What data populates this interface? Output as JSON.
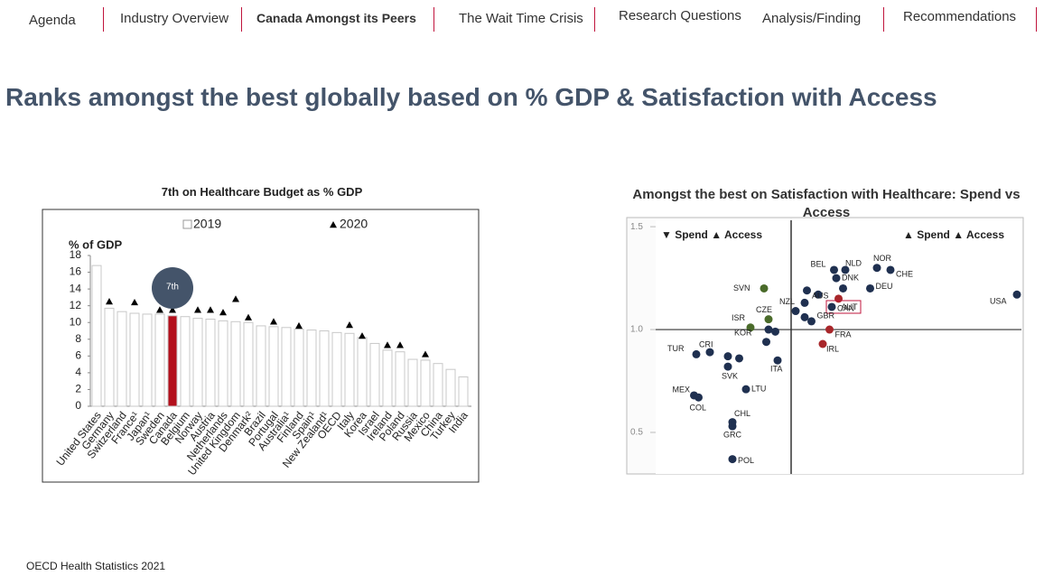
{
  "nav": [
    "Agenda",
    "Industry Overview",
    "Canada Amongst its Peers",
    "The Wait Time Crisis",
    "Research Questions",
    "Analysis/Finding",
    "Recommendations"
  ],
  "title": "Ranks amongst the best globally based on % GDP & Satisfaction with Access",
  "source": "OECD Health Statistics 2021",
  "chart_data": [
    {
      "type": "bar",
      "title": "7th on Healthcare Budget as % GDP",
      "y_label": "% of GDP",
      "annotation": "7th",
      "categories": [
        "United States",
        "Germany",
        "Switzerland",
        "France¹",
        "Japan¹",
        "Sweden",
        "Canada",
        "Belgium",
        "Norway",
        "Austria",
        "Netherlands",
        "United Kingdom",
        "Denmark²",
        "Brazil",
        "Portugal",
        "Australia¹",
        "Finland",
        "Spain¹",
        "New Zealand¹",
        "OECD",
        "Italy",
        "Korea",
        "Israel",
        "Ireland",
        "Poland",
        "Russia",
        "Mexico",
        "China",
        "Turkey",
        "India"
      ],
      "series": [
        {
          "name": "2019",
          "color": "#ffffff",
          "colors": [
            "#ffffff",
            "#ffffff",
            "#ffffff",
            "#ffffff",
            "#ffffff",
            "#ffffff",
            "#b3101c",
            "#ffffff",
            "#ffffff",
            "#ffffff",
            "#ffffff",
            "#ffffff",
            "#ffffff",
            "#ffffff",
            "#ffffff",
            "#ffffff",
            "#ffffff",
            "#ffffff",
            "#ffffff",
            "#ffffff",
            "#ffffff",
            "#ffffff",
            "#ffffff",
            "#ffffff",
            "#ffffff",
            "#ffffff",
            "#ffffff",
            "#ffffff",
            "#ffffff",
            "#ffffff"
          ],
          "values": [
            16.8,
            11.7,
            11.3,
            11.1,
            11.0,
            11.0,
            10.8,
            10.7,
            10.5,
            10.4,
            10.2,
            10.1,
            10.0,
            9.6,
            9.5,
            9.4,
            9.2,
            9.1,
            9.0,
            8.8,
            8.7,
            8.2,
            7.5,
            6.7,
            6.5,
            5.6,
            5.5,
            5.1,
            4.4,
            3.5
          ]
        },
        {
          "name": "2020",
          "color": "#000000",
          "marker": "triangle",
          "values": [
            null,
            12.5,
            null,
            12.4,
            null,
            11.5,
            11.5,
            null,
            11.5,
            11.5,
            11.2,
            12.8,
            10.6,
            null,
            10.1,
            null,
            9.6,
            null,
            null,
            null,
            9.7,
            8.4,
            null,
            7.3,
            7.3,
            null,
            6.2,
            null,
            null,
            null
          ]
        }
      ],
      "ylim": [
        0,
        18
      ],
      "yticks": [
        0,
        2,
        4,
        6,
        8,
        10,
        12,
        14,
        16,
        18
      ]
    },
    {
      "type": "scatter",
      "title": "Amongst the best on Satisfaction with Healthcare: Spend vs Access",
      "quadrant_labels": [
        "▼ Spend ▲ Access",
        "▲ Spend ▲ Access"
      ],
      "labels": [
        "USA",
        "NOR",
        "CHE",
        "NLD",
        "BEL",
        "DNK",
        "DEU",
        "AUS",
        "AUT",
        "CAN",
        "NZL",
        "GBR",
        "FRA",
        "IRL",
        "SVN",
        "CZE",
        "ISR",
        "KOR",
        "ITA",
        "TUR",
        "CRI",
        "SVK",
        "LTU",
        "MEX",
        "COL",
        "CHL",
        "GRC",
        "POL",
        null,
        null,
        null,
        null,
        null,
        null,
        null,
        null
      ],
      "x": [
        2.0,
        1.38,
        1.44,
        1.24,
        1.19,
        1.2,
        1.35,
        1.12,
        1.21,
        1.18,
        1.02,
        1.09,
        1.17,
        1.14,
        0.88,
        0.9,
        0.82,
        0.9,
        0.94,
        0.58,
        0.64,
        0.72,
        0.8,
        0.57,
        0.59,
        0.74,
        0.74,
        0.74,
        1.07,
        1.06,
        0.89,
        1.06,
        1.23,
        0.72,
        0.77,
        0.93
      ],
      "y": [
        1.17,
        1.3,
        1.29,
        1.29,
        1.29,
        1.25,
        1.2,
        1.17,
        1.15,
        1.11,
        1.09,
        1.04,
        1.0,
        0.93,
        1.2,
        1.05,
        1.01,
        1.0,
        0.85,
        0.88,
        0.89,
        0.82,
        0.71,
        0.68,
        0.67,
        0.55,
        0.53,
        0.37,
        1.19,
        1.13,
        0.94,
        1.06,
        1.2,
        0.87,
        0.86,
        0.99
      ],
      "colors": [
        "#1f3050",
        "#1f3050",
        "#1f3050",
        "#1f3050",
        "#1f3050",
        "#1f3050",
        "#1f3050",
        "#1f3050",
        "#a8262a",
        "#1f3050",
        "#1f3050",
        "#1f3050",
        "#a8262a",
        "#a8262a",
        "#4a6b2a",
        "#4a6b2a",
        "#4a6b2a",
        "#1f3050",
        "#1f3050",
        "#1f3050",
        "#1f3050",
        "#1f3050",
        "#1f3050",
        "#1f3050",
        "#1f3050",
        "#1f3050",
        "#1f3050",
        "#1f3050",
        "#1f3050",
        "#1f3050",
        "#1f3050",
        "#1f3050",
        "#1f3050",
        "#1f3050",
        "#1f3050",
        "#1f3050"
      ],
      "x_reference": 1,
      "y_reference": 1,
      "xlim": [
        0.4,
        2.02
      ],
      "ylim": [
        0.32,
        1.54
      ],
      "yticks": [
        {
          "value": 0.5,
          "label": "0.5"
        },
        {
          "value": 1,
          "label": "1.0"
        },
        {
          "value": 1.5,
          "label": "1.5"
        }
      ]
    }
  ]
}
